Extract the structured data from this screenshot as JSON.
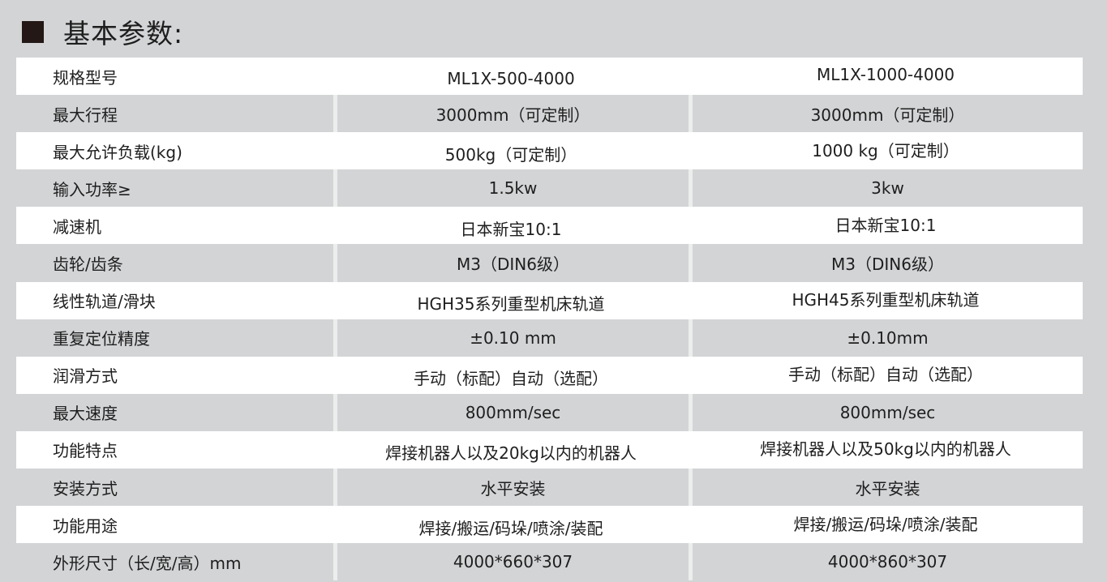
{
  "title": "基本参数:",
  "rows": [
    {
      "label": "规格型号",
      "a": "ML1X-500-4000",
      "b": "ML1X-1000-4000"
    },
    {
      "label": "最大行程",
      "a": "3000mm（可定制）",
      "b": "3000mm（可定制）"
    },
    {
      "label": "最大允许负载(kg)",
      "a": "500kg（可定制）",
      "b": "1000 kg（可定制）"
    },
    {
      "label": "输入功率≥",
      "a": "1.5kw",
      "b": "3kw"
    },
    {
      "label": "减速机",
      "a": "日本新宝10:1",
      "b": "日本新宝10:1"
    },
    {
      "label": "齿轮/齿条",
      "a": "M3（DIN6级）",
      "b": "M3（DIN6级）"
    },
    {
      "label": "线性轨道/滑块",
      "a": "HGH35系列重型机床轨道",
      "b": "HGH45系列重型机床轨道"
    },
    {
      "label": "重复定位精度",
      "a": "±0.10 mm",
      "b": "±0.10mm"
    },
    {
      "label": "润滑方式",
      "a": "手动（标配）自动（选配）",
      "b": "手动（标配）自动（选配）"
    },
    {
      "label": "最大速度",
      "a": "800mm/sec",
      "b": "800mm/sec"
    },
    {
      "label": "功能特点",
      "a": "焊接机器人以及20kg以内的机器人",
      "b": "焊接机器人以及50kg以内的机器人"
    },
    {
      "label": "安装方式",
      "a": "水平安装",
      "b": "水平安装"
    },
    {
      "label": "功能用途",
      "a": "焊接/搬运/码垛/喷涂/装配",
      "b": "焊接/搬运/码垛/喷涂/装配"
    },
    {
      "label": "外形尺寸（长/宽/高）mm",
      "a": "4000*660*307",
      "b": "4000*860*307"
    }
  ]
}
